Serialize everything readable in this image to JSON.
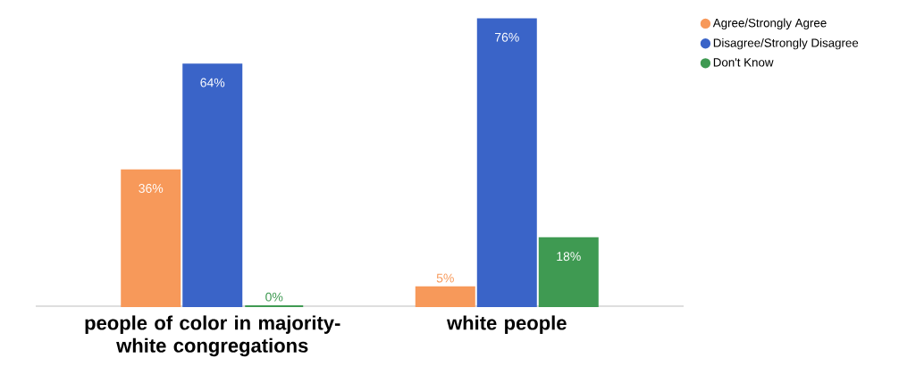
{
  "chart_data": {
    "type": "bar",
    "categories": [
      "people of color in majority-white congregations",
      "white people"
    ],
    "series": [
      {
        "name": "Agree/Strongly Agree",
        "color": "#f7995a",
        "values": [
          36,
          5
        ],
        "value_labels": [
          "36%",
          "5%"
        ]
      },
      {
        "name": "Disagree/Strongly Disagree",
        "color": "#3a64c8",
        "values": [
          64,
          76
        ],
        "value_labels": [
          "64%",
          "76%"
        ]
      },
      {
        "name": "Don't Know",
        "color": "#3f9a52",
        "values": [
          0,
          18
        ],
        "value_labels": [
          "0%",
          "18%"
        ]
      }
    ],
    "legend": "top right"
  }
}
